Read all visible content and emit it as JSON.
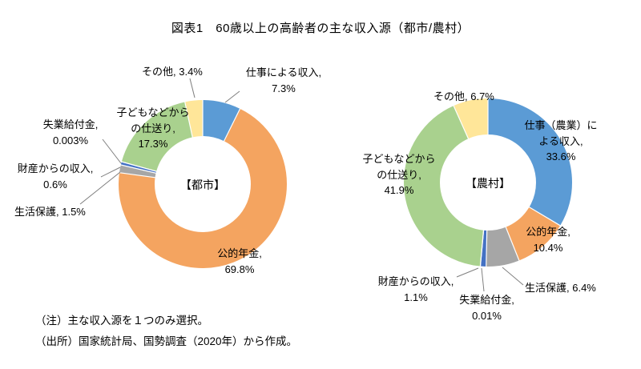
{
  "title": "図表1　60歳以上の高齢者の主な収入源（都市/農村）",
  "notes": {
    "note": "（注）主な収入源を１つのみ選択。",
    "source": "（出所）国家統計局、国勢調査（2020年）から作成。"
  },
  "chart_data": [
    {
      "type": "pie",
      "subtype": "donut",
      "group": "都市",
      "center_label": "【都市】",
      "unit": "%",
      "order": "clockwise-from-top",
      "labels": [
        "仕事による収入",
        "公的年金",
        "生活保護",
        "財産からの収入",
        "失業給付金",
        "子どもなどからの仕送り",
        "その他"
      ],
      "values": [
        7.3,
        69.8,
        1.5,
        0.6,
        0.003,
        17.3,
        3.4
      ],
      "colors": [
        "#5B9BD5",
        "#F4A460",
        "#A6A6A6",
        "#4472C4",
        "#FFC000",
        "#A9D18E",
        "#FFE699"
      ],
      "annotations": {
        "work": "仕事による収入,\n7.3%",
        "pension": "公的年金,\n69.8%",
        "assistance": "生活保護, 1.5%",
        "property": "財産からの収入,\n0.6%",
        "unemployment": "失業給付金,\n0.003%",
        "remittance": "子どもなどから\nの仕送り,\n17.3%",
        "other": "その他, 3.4%"
      }
    },
    {
      "type": "pie",
      "subtype": "donut",
      "group": "農村",
      "center_label": "【農村】",
      "unit": "%",
      "order": "clockwise-from-top",
      "labels": [
        "仕事（農業）による収入",
        "公的年金",
        "生活保護",
        "財産からの収入",
        "失業給付金",
        "子どもなどからの仕送り",
        "その他"
      ],
      "values": [
        33.6,
        10.4,
        6.4,
        1.1,
        0.01,
        41.9,
        6.7
      ],
      "colors": [
        "#5B9BD5",
        "#F4A460",
        "#A6A6A6",
        "#4472C4",
        "#FFC000",
        "#A9D18E",
        "#FFE699"
      ],
      "annotations": {
        "work": "仕事（農業）に\nよる収入,\n33.6%",
        "pension": "公的年金,\n10.4%",
        "assistance": "生活保護, 6.4%",
        "property": "財産からの収入,\n1.1%",
        "unemployment": "失業給付金,\n0.01%",
        "remittance": "子どもなどから\nの仕送り,\n41.9%",
        "other": "その他, 6.7%"
      }
    }
  ]
}
